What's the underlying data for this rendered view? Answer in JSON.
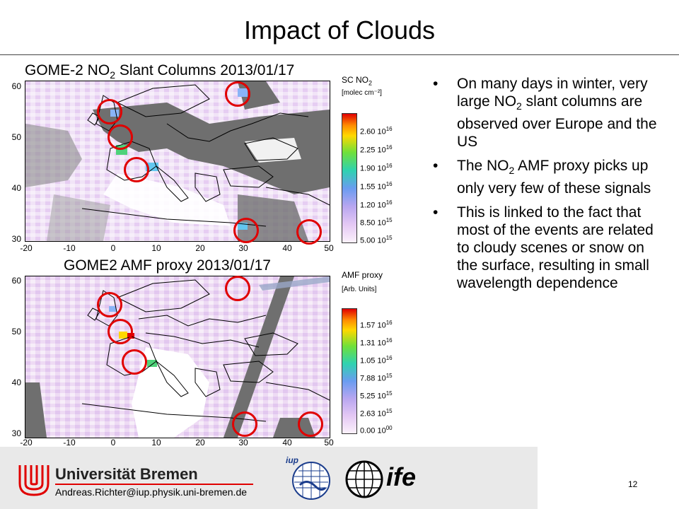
{
  "slide": {
    "title": "Impact of Clouds",
    "page_number": "12"
  },
  "map_top": {
    "title_prefix": "GOME-2 NO",
    "title_sub": "2",
    "title_suffix": " Slant Columns 2013/01/17",
    "y_ticks": [
      "60",
      "50",
      "40",
      "30"
    ],
    "x_ticks": [
      "-20",
      "-10",
      "0",
      "10",
      "20",
      "30",
      "40",
      "50"
    ],
    "colorbar_title_prefix": "SC NO",
    "colorbar_title_sub": "2",
    "colorbar_unit": "[molec cm⁻²]",
    "colorbar_labels": [
      {
        "mant": "2.60 10",
        "exp": "16"
      },
      {
        "mant": "2.25 10",
        "exp": "16"
      },
      {
        "mant": "1.90 10",
        "exp": "16"
      },
      {
        "mant": "1.55 10",
        "exp": "16"
      },
      {
        "mant": "1.20 10",
        "exp": "16"
      },
      {
        "mant": "8.50 10",
        "exp": "15"
      },
      {
        "mant": "5.00 10",
        "exp": "15"
      }
    ]
  },
  "map_bottom": {
    "title": "GOME2 AMF proxy 2013/01/17",
    "y_ticks": [
      "60",
      "50",
      "40",
      "30"
    ],
    "x_ticks": [
      "-20",
      "-10",
      "0",
      "10",
      "20",
      "30",
      "40",
      "50"
    ],
    "colorbar_title": "AMF proxy",
    "colorbar_unit": "[Arb. Units]",
    "colorbar_labels": [
      {
        "mant": "1.57 10",
        "exp": "16"
      },
      {
        "mant": "1.31 10",
        "exp": "16"
      },
      {
        "mant": "1.05 10",
        "exp": "16"
      },
      {
        "mant": "7.88 10",
        "exp": "15"
      },
      {
        "mant": "5.25 10",
        "exp": "15"
      },
      {
        "mant": "2.63 10",
        "exp": "15"
      },
      {
        "mant": "0.00 10",
        "exp": "00"
      }
    ]
  },
  "bullets": [
    {
      "before": "On many days in winter, very large NO",
      "sub": "2",
      "after": " slant columns are observed over Europe and the US"
    },
    {
      "before": "The NO",
      "sub": "2",
      "after": " AMF proxy picks up only very few of these signals"
    },
    {
      "before": "This is linked to the fact that most of the events are related to cloudy scenes or snow on the surface, resulting in small wavelength dependence",
      "sub": "",
      "after": ""
    }
  ],
  "footer": {
    "university": "Universität Bremen",
    "email": "Andreas.Richter@iup.physik.uni-bremen.de",
    "iup_logo_text": "iup",
    "ife_logo_text": "ife"
  },
  "colors": {
    "circle": "#e00000",
    "land_dark": "#6f6f6f",
    "accent_red": "#e00000"
  }
}
